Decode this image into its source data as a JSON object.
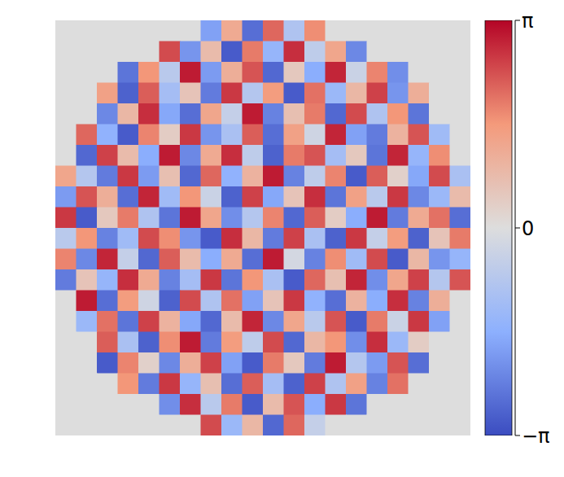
{
  "chart_data": {
    "type": "heatmap",
    "tick_labels": false,
    "cells": [
      [
        0,
        0,
        0,
        0,
        0,
        0,
        0,
        -1.8,
        1.2,
        -2.6,
        2.1,
        -0.9,
        1.7,
        0,
        0,
        0,
        0,
        0,
        0,
        0
      ],
      [
        0,
        0,
        0,
        0,
        0,
        2.4,
        -2.0,
        0.8,
        -2.9,
        1.9,
        -1.4,
        2.7,
        -0.6,
        1.3,
        -2.2,
        0,
        0,
        0,
        0,
        0
      ],
      [
        0,
        0,
        0,
        -2.5,
        1.6,
        -0.7,
        2.9,
        -1.9,
        1.1,
        2.3,
        -2.7,
        0.5,
        -1.6,
        2.8,
        -0.4,
        1.8,
        -2.1,
        0,
        0,
        0
      ],
      [
        0,
        0,
        1.4,
        -2.8,
        2.2,
        -1.1,
        0.6,
        -2.4,
        2.6,
        -0.8,
        1.5,
        -2.9,
        2.0,
        -1.3,
        0.9,
        2.5,
        -2.0,
        1.1,
        0,
        0
      ],
      [
        0,
        0,
        -2.2,
        0.9,
        2.7,
        -1.7,
        -2.6,
        1.3,
        -0.5,
        2.9,
        -2.3,
        0.7,
        1.9,
        -2.7,
        2.4,
        -0.9,
        1.6,
        -2.5,
        0,
        0
      ],
      [
        0,
        2.1,
        -1.5,
        -2.9,
        1.8,
        0.4,
        2.6,
        -2.0,
        -1.0,
        2.2,
        -2.6,
        1.4,
        -0.3,
        2.8,
        -1.8,
        -2.4,
        1.0,
        2.3,
        -1.2,
        0
      ],
      [
        0,
        -2.7,
        2.5,
        0.8,
        -1.6,
        2.9,
        -2.2,
        1.2,
        2.7,
        -0.6,
        -2.8,
        1.9,
        2.3,
        -1.1,
        0.5,
        -2.5,
        2.8,
        -1.4,
        1.7,
        0
      ],
      [
        1.3,
        -0.8,
        -2.4,
        2.6,
        -1.9,
        0.7,
        -2.7,
        2.1,
        -1.5,
        1.0,
        2.9,
        -2.3,
        -0.6,
        1.8,
        -2.9,
        2.2,
        0.3,
        -1.7,
        2.4,
        -1.0
      ],
      [
        -1.9,
        2.3,
        1.1,
        -2.6,
        2.8,
        -1.2,
        1.6,
        -0.4,
        -2.8,
        2.5,
        -1.7,
        0.6,
        2.7,
        -2.5,
        1.4,
        -0.7,
        2.6,
        -2.2,
        -1.3,
        0.8
      ],
      [
        2.6,
        -2.9,
        0.5,
        1.9,
        -0.9,
        -2.5,
        2.9,
        1.3,
        -2.1,
        -0.8,
        1.8,
        -2.7,
        2.2,
        0.4,
        -1.6,
        2.9,
        -2.4,
        1.2,
        2.0,
        -2.6
      ],
      [
        -0.7,
        1.6,
        -2.3,
        -1.2,
        2.4,
        1.7,
        -2.0,
        -2.9,
        2.7,
        0.9,
        -2.4,
        2.5,
        -1.0,
        -2.8,
        2.6,
        -0.5,
        1.5,
        -2.8,
        0.6,
        1.9
      ],
      [
        1.8,
        -2.2,
        2.8,
        -0.5,
        -2.7,
        2.2,
        0.8,
        -1.6,
        1.2,
        -2.6,
        2.9,
        -0.2,
        -2.3,
        1.7,
        -1.2,
        2.4,
        -2.9,
        0.9,
        -2.0,
        -1.4
      ],
      [
        -2.4,
        0.6,
        -1.4,
        2.7,
        1.2,
        -2.3,
        -1.1,
        2.6,
        -2.5,
        1.6,
        -1.0,
        -2.9,
        2.1,
        0.7,
        2.8,
        -2.1,
        1.3,
        2.5,
        -0.8,
        2.3
      ],
      [
        0,
        2.9,
        -2.6,
        1.5,
        -0.3,
        -2.8,
        2.4,
        -0.9,
        2.0,
        -1.8,
        0.6,
        2.6,
        -1.5,
        -2.6,
        1.0,
        -1.6,
        2.7,
        -2.3,
        1.1,
        0
      ],
      [
        0,
        -1.3,
        2.0,
        -2.5,
        2.5,
        1.0,
        -1.7,
        -2.7,
        0.8,
        2.8,
        -2.2,
        1.3,
        -0.7,
        2.3,
        -2.9,
        1.9,
        -0.4,
        2.6,
        -1.8,
        0
      ],
      [
        0,
        0,
        2.2,
        -1.0,
        -2.8,
        1.7,
        2.9,
        -2.4,
        1.5,
        -0.6,
        2.4,
        -2.7,
        0.9,
        1.6,
        -2.1,
        2.7,
        -1.3,
        0.4,
        0,
        0
      ],
      [
        0,
        0,
        -2.9,
        1.8,
        0.3,
        -2.2,
        1.1,
        2.5,
        -1.8,
        -2.9,
        1.9,
        0.5,
        -2.4,
        2.9,
        -0.8,
        -1.9,
        2.3,
        -2.6,
        0,
        0
      ],
      [
        0,
        0,
        0,
        1.6,
        -2.4,
        2.6,
        -1.4,
        0.7,
        -2.6,
        2.2,
        -1.1,
        -2.8,
        2.5,
        -0.9,
        1.4,
        -2.3,
        2.0,
        0,
        0,
        0
      ],
      [
        0,
        0,
        0,
        0,
        0,
        -2.1,
        2.7,
        -0.7,
        1.9,
        -2.9,
        0.8,
        2.3,
        -1.6,
        2.6,
        -2.5,
        0,
        0,
        0,
        0,
        0
      ],
      [
        0,
        0,
        0,
        0,
        0,
        0,
        0,
        2.4,
        -1.3,
        0.9,
        -2.7,
        2.1,
        -0.5,
        0,
        0,
        0,
        0,
        0,
        0,
        0
      ]
    ],
    "colorbar": {
      "range": [
        -3.14159,
        3.14159
      ],
      "ticks": [
        {
          "value": -3.14159,
          "label": "−π"
        },
        0,
        {
          "value": 3.14159,
          "label": "π"
        }
      ]
    }
  }
}
